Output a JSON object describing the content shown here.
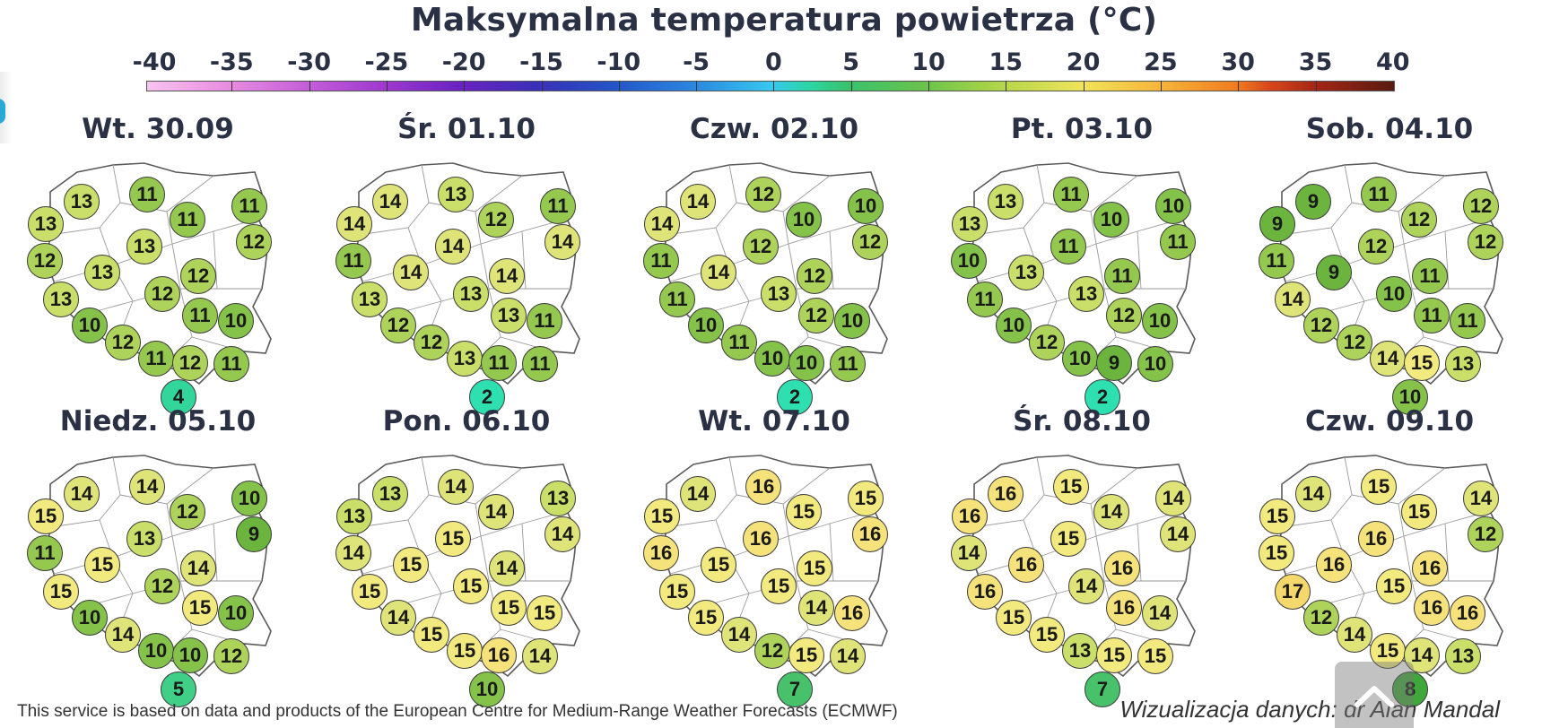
{
  "title": "Maksymalna temperatura powietrza (°C)",
  "scale": {
    "ticks": [
      "-40",
      "-35",
      "-30",
      "-25",
      "-20",
      "-15",
      "-10",
      "-5",
      "0",
      "5",
      "10",
      "15",
      "20",
      "25",
      "30",
      "35",
      "40"
    ]
  },
  "colors": {
    "t2": "#2ee0b0",
    "t4": "#33d69a",
    "t5": "#3fcf86",
    "t7": "#47c26a",
    "t8": "#3fa83a",
    "t9": "#6bb43e",
    "t10": "#84c24a",
    "t11": "#95c84e",
    "t12": "#aed35a",
    "t13": "#c9df69",
    "t14": "#dfe479",
    "t15": "#f2e97f",
    "t16": "#f6e27a",
    "t17": "#f5d86c"
  },
  "panels": [
    {
      "date": "Wt. 30.09",
      "values": [
        11,
        13,
        13,
        11,
        11,
        13,
        12,
        12,
        13,
        12,
        13,
        12,
        10,
        11,
        10,
        12,
        11,
        12,
        11,
        4
      ]
    },
    {
      "date": "Śr. 01.10",
      "values": [
        13,
        14,
        14,
        12,
        11,
        14,
        14,
        11,
        14,
        14,
        13,
        13,
        12,
        13,
        11,
        12,
        13,
        11,
        11,
        2
      ]
    },
    {
      "date": "Czw. 02.10",
      "values": [
        12,
        14,
        14,
        10,
        10,
        12,
        12,
        11,
        14,
        12,
        11,
        13,
        10,
        12,
        10,
        11,
        10,
        10,
        11,
        2
      ]
    },
    {
      "date": "Pt. 03.10",
      "values": [
        11,
        13,
        13,
        10,
        10,
        11,
        11,
        10,
        13,
        11,
        11,
        13,
        10,
        12,
        10,
        12,
        10,
        9,
        10,
        2
      ]
    },
    {
      "date": "Sob. 04.10",
      "values": [
        11,
        9,
        9,
        12,
        12,
        12,
        12,
        11,
        9,
        11,
        14,
        10,
        12,
        11,
        11,
        12,
        14,
        15,
        13,
        10
      ]
    },
    {
      "date": "Niedz. 05.10",
      "values": [
        14,
        14,
        15,
        12,
        10,
        13,
        9,
        11,
        15,
        14,
        15,
        12,
        10,
        15,
        10,
        14,
        10,
        10,
        12,
        5
      ]
    },
    {
      "date": "Pon. 06.10",
      "values": [
        14,
        13,
        13,
        14,
        13,
        15,
        14,
        14,
        15,
        14,
        15,
        15,
        14,
        15,
        15,
        15,
        15,
        16,
        14,
        10
      ]
    },
    {
      "date": "Wt. 07.10",
      "values": [
        16,
        14,
        15,
        15,
        15,
        16,
        16,
        16,
        15,
        15,
        15,
        15,
        15,
        14,
        16,
        14,
        12,
        15,
        14,
        7
      ]
    },
    {
      "date": "Śr. 08.10",
      "values": [
        15,
        16,
        16,
        14,
        14,
        15,
        14,
        14,
        16,
        16,
        16,
        14,
        15,
        16,
        14,
        15,
        13,
        15,
        15,
        7
      ]
    },
    {
      "date": "Czw. 09.10",
      "values": [
        15,
        14,
        15,
        15,
        14,
        16,
        12,
        15,
        16,
        16,
        17,
        15,
        12,
        16,
        16,
        14,
        15,
        14,
        13,
        8
      ]
    }
  ],
  "footer": {
    "source": "This service is based on data and products of the European Centre for Medium-Range Weather Forecasts (ECMWF)",
    "credit": "Wizualizacja danych: dr Alan Mandal"
  }
}
